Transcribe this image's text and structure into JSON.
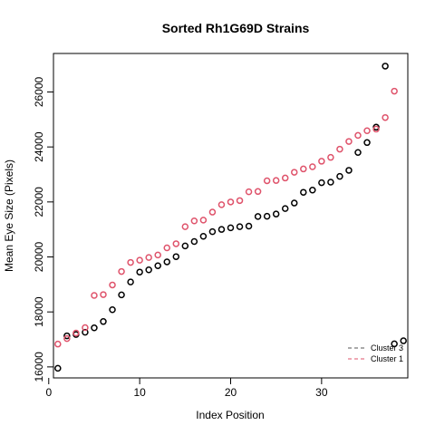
{
  "chart_data": {
    "type": "scatter",
    "title": "Sorted Rh1G69D Strains",
    "xlabel": "Index Position",
    "ylabel": "Mean Eye Size (Pixels)",
    "xlim": [
      0.52,
      39.48
    ],
    "ylim": [
      15600,
      27400
    ],
    "x_ticks": [
      0,
      10,
      20,
      30
    ],
    "y_ticks": [
      16000,
      18000,
      20000,
      22000,
      24000,
      26000
    ],
    "legend_position": "bottom-right",
    "legend": [
      {
        "label": "Cluster 3",
        "color": "#555555",
        "line": "dashed"
      },
      {
        "label": "Cluster 1",
        "color": "#DF536B",
        "line": "dashed"
      }
    ],
    "series": [
      {
        "color": "#000000",
        "x": [
          1,
          2,
          3,
          4,
          5,
          6,
          7,
          8,
          9,
          10,
          11,
          12,
          13,
          14,
          15,
          16,
          17,
          18,
          19,
          20,
          21,
          22,
          23,
          24,
          25,
          26,
          27,
          28,
          29,
          30,
          31,
          32,
          33,
          34,
          35,
          36,
          37,
          38,
          39
        ],
        "y": [
          15950,
          17130,
          17180,
          17260,
          17420,
          17650,
          18080,
          18620,
          19090,
          19450,
          19530,
          19680,
          19820,
          20010,
          20400,
          20560,
          20750,
          20920,
          21000,
          21060,
          21100,
          21120,
          21470,
          21480,
          21560,
          21760,
          21960,
          22350,
          22430,
          22700,
          22720,
          22930,
          23150,
          23800,
          24160,
          24720,
          26940,
          16840,
          16950
        ]
      },
      {
        "color": "#DF536B",
        "x": [
          1,
          2,
          3,
          4,
          5,
          6,
          7,
          8,
          9,
          10,
          11,
          12,
          13,
          14,
          15,
          16,
          17,
          18,
          19,
          20,
          21,
          22,
          23,
          24,
          25,
          26,
          27,
          28,
          29,
          30,
          31,
          32,
          33,
          34,
          35,
          36,
          37,
          38
        ],
        "y": [
          16830,
          17030,
          17230,
          17430,
          18600,
          18630,
          18980,
          19470,
          19800,
          19880,
          19980,
          20070,
          20330,
          20480,
          21100,
          21310,
          21340,
          21630,
          21900,
          22000,
          22050,
          22370,
          22380,
          22770,
          22780,
          22870,
          23080,
          23200,
          23280,
          23480,
          23620,
          23920,
          24200,
          24420,
          24590,
          24650,
          25070,
          26030
        ]
      }
    ]
  }
}
